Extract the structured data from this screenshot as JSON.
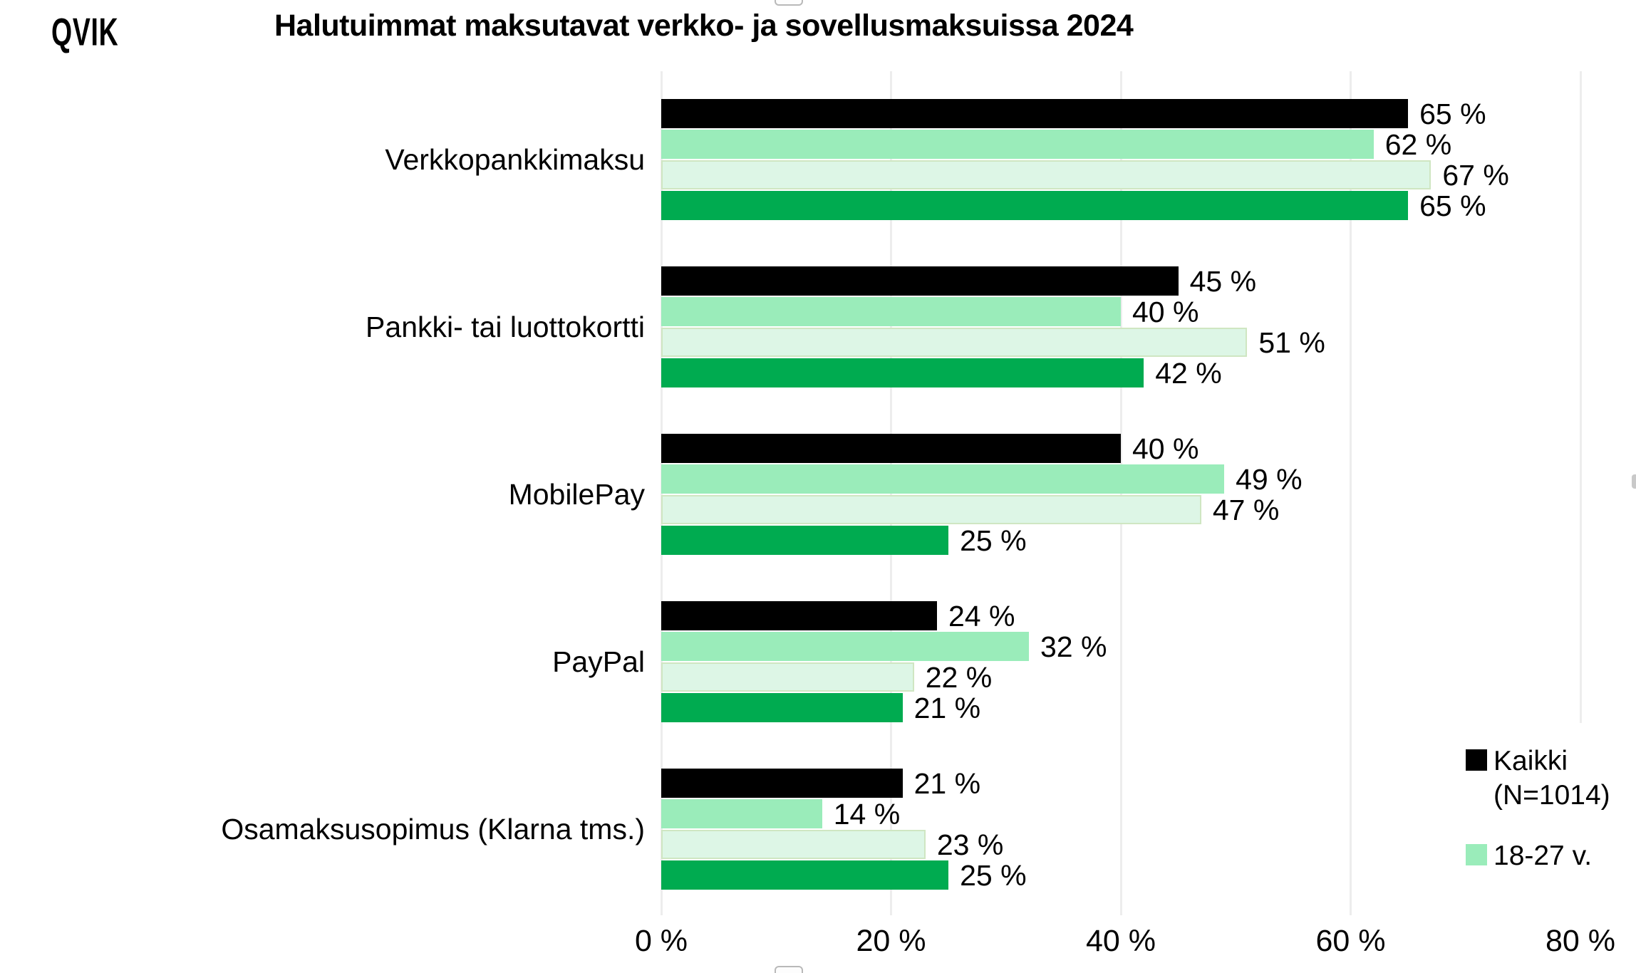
{
  "logo": "QVIK",
  "title": "Halutuimmat maksutavat verkko- ja sovellusmaksuissa 2024",
  "chart_data": {
    "type": "bar",
    "orientation": "horizontal",
    "title": "Halutuimmat maksutavat verkko- ja sovellusmaksuissa 2024",
    "categories": [
      "Verkkopankkimaksu",
      "Pankki- tai luottokortti",
      "MobilePay",
      "PayPal",
      "Osamaksusopimus (Klarna tms.)"
    ],
    "series": [
      {
        "name": "Kaikki (N=1014)",
        "color": "#000000",
        "border_color": null,
        "legend_visible": true,
        "values": [
          65,
          45,
          40,
          24,
          21
        ]
      },
      {
        "name": "18-27 v.",
        "color": "#9aecba",
        "border_color": null,
        "legend_visible": true,
        "values": [
          62,
          40,
          49,
          32,
          14
        ]
      },
      {
        "name": "",
        "color": "#ddf6e6",
        "border_color": "#cfe6c2",
        "legend_visible": false,
        "values": [
          67,
          51,
          47,
          22,
          23
        ]
      },
      {
        "name": "",
        "color": "#00ab50",
        "border_color": null,
        "legend_visible": false,
        "values": [
          65,
          42,
          25,
          21,
          25
        ]
      }
    ],
    "value_suffix": " %",
    "x_range": [
      0,
      80
    ],
    "x_ticks": [
      "0 %",
      "20 %",
      "40 %",
      "60 %",
      "80 %"
    ],
    "xlabel": "",
    "ylabel": "",
    "grid": "vertical",
    "legend_position": "right-bottom"
  },
  "legend": {
    "items": [
      {
        "label_lines": [
          "Kaikki",
          "(N=1014)"
        ],
        "color": "#000000"
      },
      {
        "label_lines": [
          "18-27 v.",
          ""
        ],
        "color": "#9aecba"
      }
    ]
  }
}
